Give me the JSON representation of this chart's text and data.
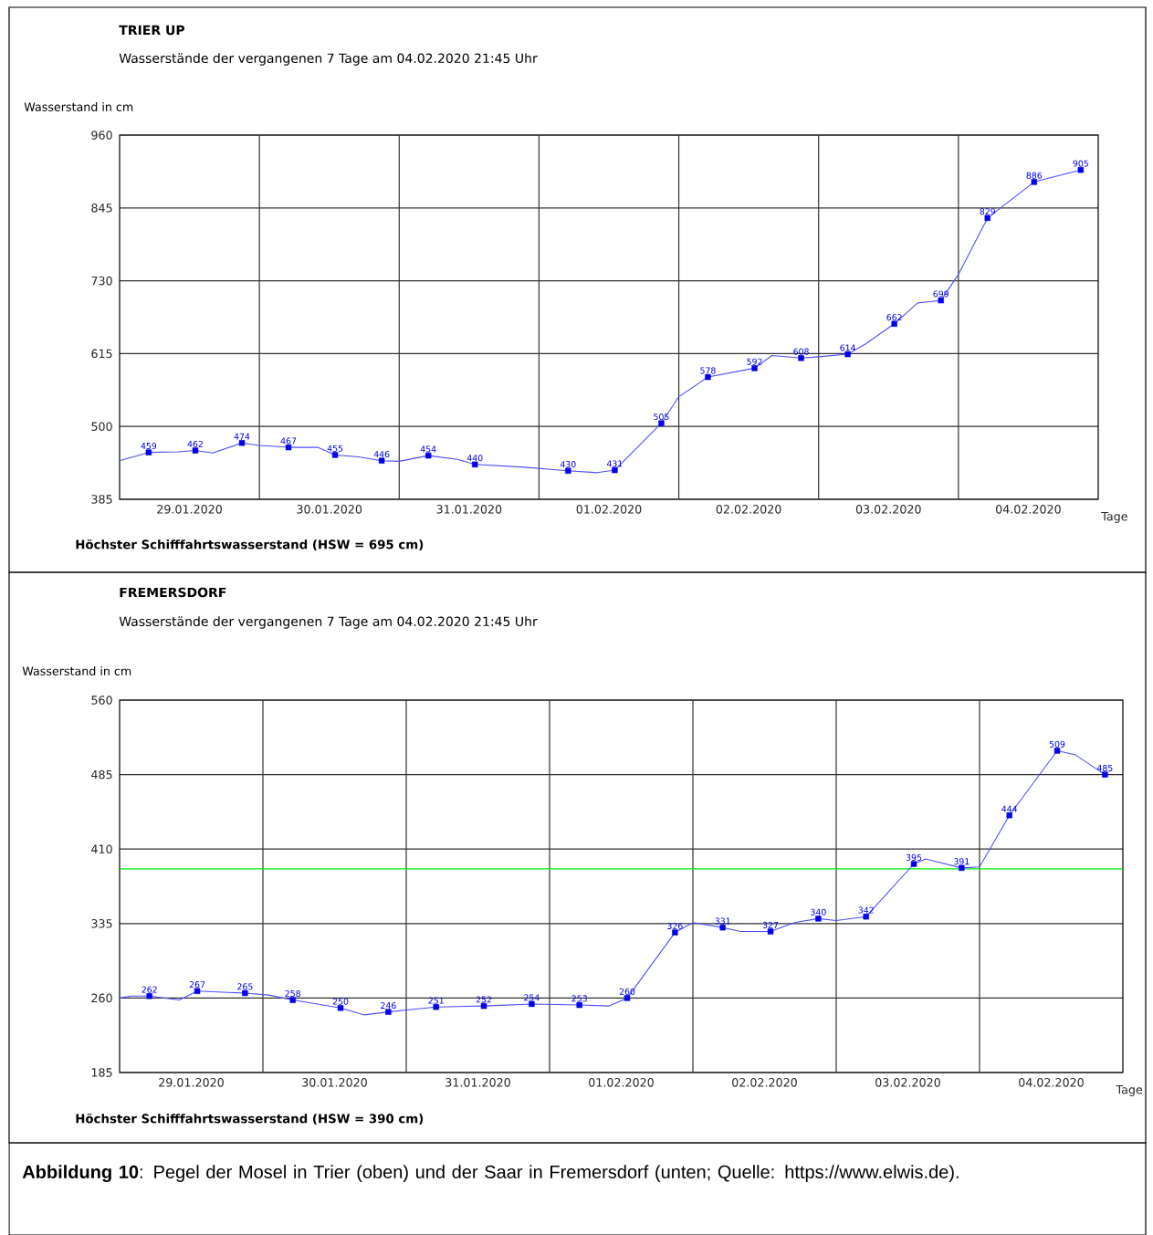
{
  "chart_data": [
    {
      "type": "line",
      "title": "TRIER UP",
      "subtitle": "Wasserstände der vergangenen 7 Tage am 04.02.2020 21:45 Uhr",
      "ylabel": "Wasserstand in cm",
      "xlabel": "Tage",
      "xlim": [
        "2020-01-29T00:00",
        "2020-02-05T00:00"
      ],
      "ylim": [
        385,
        960
      ],
      "yticks": [
        385,
        500,
        615,
        730,
        845,
        960
      ],
      "xticks": [
        {
          "value": "2020-01-29T12:00",
          "label": "29.01.2020"
        },
        {
          "value": "2020-01-30T12:00",
          "label": "30.01.2020"
        },
        {
          "value": "2020-01-31T12:00",
          "label": "31.01.2020"
        },
        {
          "value": "2020-02-01T12:00",
          "label": "01.02.2020"
        },
        {
          "value": "2020-02-02T12:00",
          "label": "02.02.2020"
        },
        {
          "value": "2020-02-03T12:00",
          "label": "03.02.2020"
        },
        {
          "value": "2020-02-04T12:00",
          "label": "04.02.2020"
        },
        {
          "value": "2020-01-30T00:00",
          "label": null
        },
        {
          "value": "2020-01-31T00:00",
          "label": null
        },
        {
          "value": "2020-02-01T00:00",
          "label": null
        },
        {
          "value": "2020-02-02T00:00",
          "label": null
        },
        {
          "value": "2020-02-03T00:00",
          "label": null
        },
        {
          "value": "2020-02-04T00:00",
          "label": null
        }
      ],
      "grid": true,
      "series": [
        {
          "type": "line",
          "color": "#4d4dff",
          "marker": "none",
          "x": [
            "2020-01-29T00:00",
            "2020-01-29T05:00",
            "2020-01-29T10:00",
            "2020-01-29T13:00",
            "2020-01-29T16:00",
            "2020-01-29T21:00",
            "2020-01-30T00:00",
            "2020-01-30T05:00",
            "2020-01-30T10:00",
            "2020-01-30T13:00",
            "2020-01-30T17:00",
            "2020-01-30T21:00",
            "2020-01-31T00:00",
            "2020-01-31T05:00",
            "2020-01-31T10:00",
            "2020-01-31T13:00",
            "2020-01-31T21:00",
            "2020-02-01T05:00",
            "2020-02-01T10:00",
            "2020-02-01T13:00",
            "2020-02-01T21:00",
            "2020-02-02T00:00",
            "2020-02-02T05:00",
            "2020-02-02T13:00",
            "2020-02-02T16:00",
            "2020-02-02T21:00",
            "2020-02-03T00:00",
            "2020-02-03T05:00",
            "2020-02-03T08:00",
            "2020-02-03T13:00",
            "2020-02-03T17:00",
            "2020-02-03T21:00",
            "2020-02-04T00:00",
            "2020-02-04T05:00",
            "2020-02-04T13:00",
            "2020-02-04T21:00"
          ],
          "values": [
            446,
            459,
            460,
            462,
            458,
            474,
            470,
            467,
            467,
            455,
            452,
            446,
            445,
            454,
            448,
            440,
            436,
            430,
            427,
            431,
            505,
            547,
            578,
            592,
            612,
            608,
            610,
            614,
            630,
            662,
            695,
            699,
            740,
            829,
            886,
            905
          ]
        },
        {
          "type": "scatter",
          "color": "#0000ee",
          "marker": "square",
          "data_labels": true,
          "x": [
            "2020-01-29T05:00",
            "2020-01-29T13:00",
            "2020-01-29T21:00",
            "2020-01-30T05:00",
            "2020-01-30T13:00",
            "2020-01-30T21:00",
            "2020-01-31T05:00",
            "2020-01-31T13:00",
            "2020-02-01T05:00",
            "2020-02-01T13:00",
            "2020-02-01T21:00",
            "2020-02-02T05:00",
            "2020-02-02T13:00",
            "2020-02-02T21:00",
            "2020-02-03T05:00",
            "2020-02-03T13:00",
            "2020-02-03T21:00",
            "2020-02-04T05:00",
            "2020-02-04T13:00",
            "2020-02-04T21:00"
          ],
          "values": [
            459,
            462,
            474,
            467,
            455,
            446,
            454,
            440,
            430,
            431,
            505,
            578,
            592,
            608,
            614,
            662,
            699,
            829,
            886,
            905
          ]
        }
      ],
      "annotations": [
        "Höchster Schifffahrtswasserstand (HSW = 695 cm)"
      ]
    },
    {
      "type": "line",
      "title": "FREMERSDORF",
      "subtitle": "Wasserstände der vergangenen 7 Tage am 04.02.2020 21:45 Uhr",
      "ylabel": "Wasserstand in cm",
      "xlabel": "Tage",
      "xlim": [
        "2020-01-29T00:00",
        "2020-02-05T00:00"
      ],
      "ylim": [
        185,
        560
      ],
      "yticks": [
        185,
        260,
        335,
        410,
        485,
        560
      ],
      "xticks": [
        {
          "value": "2020-01-29T12:00",
          "label": "29.01.2020"
        },
        {
          "value": "2020-01-30T12:00",
          "label": "30.01.2020"
        },
        {
          "value": "2020-01-31T12:00",
          "label": "31.01.2020"
        },
        {
          "value": "2020-02-01T12:00",
          "label": "01.02.2020"
        },
        {
          "value": "2020-02-02T12:00",
          "label": "02.02.2020"
        },
        {
          "value": "2020-02-03T12:00",
          "label": "03.02.2020"
        },
        {
          "value": "2020-02-04T12:00",
          "label": "04.02.2020"
        },
        {
          "value": "2020-01-30T00:00",
          "label": null
        },
        {
          "value": "2020-01-31T00:00",
          "label": null
        },
        {
          "value": "2020-02-01T00:00",
          "label": null
        },
        {
          "value": "2020-02-02T00:00",
          "label": null
        },
        {
          "value": "2020-02-03T00:00",
          "label": null
        },
        {
          "value": "2020-02-04T00:00",
          "label": null
        }
      ],
      "grid": true,
      "ref_lines": [
        {
          "axis": "y",
          "value": 390,
          "color": "#00ee00"
        }
      ],
      "series": [
        {
          "type": "line",
          "color": "#4d4dff",
          "marker": "none",
          "x": [
            "2020-01-29T00:00",
            "2020-01-29T02:00",
            "2020-01-29T05:00",
            "2020-01-29T10:00",
            "2020-01-29T13:00",
            "2020-01-29T21:00",
            "2020-01-30T01:00",
            "2020-01-30T05:00",
            "2020-01-30T13:00",
            "2020-01-30T17:00",
            "2020-01-30T21:00",
            "2020-01-31T00:00",
            "2020-01-31T05:00",
            "2020-01-31T13:00",
            "2020-01-31T21:00",
            "2020-02-01T05:00",
            "2020-02-01T10:00",
            "2020-02-01T13:00",
            "2020-02-01T21:00",
            "2020-02-02T00:00",
            "2020-02-02T05:00",
            "2020-02-02T08:00",
            "2020-02-02T13:00",
            "2020-02-02T17:00",
            "2020-02-02T21:00",
            "2020-02-03T00:00",
            "2020-02-03T05:00",
            "2020-02-03T13:00",
            "2020-02-03T15:00",
            "2020-02-03T21:00",
            "2020-02-04T00:00",
            "2020-02-04T05:00",
            "2020-02-04T13:00",
            "2020-02-04T16:00",
            "2020-02-04T21:00"
          ],
          "values": [
            260,
            262,
            262,
            258,
            267,
            265,
            263,
            258,
            250,
            243,
            246,
            248,
            251,
            252,
            254,
            253,
            252,
            260,
            326,
            336,
            331,
            327,
            327,
            336,
            340,
            338,
            342,
            395,
            400,
            391,
            392,
            444,
            509,
            505,
            485
          ]
        },
        {
          "type": "scatter",
          "color": "#0000ee",
          "marker": "square",
          "data_labels": true,
          "x": [
            "2020-01-29T05:00",
            "2020-01-29T13:00",
            "2020-01-29T21:00",
            "2020-01-30T05:00",
            "2020-01-30T13:00",
            "2020-01-30T21:00",
            "2020-01-31T05:00",
            "2020-01-31T13:00",
            "2020-01-31T21:00",
            "2020-02-01T05:00",
            "2020-02-01T13:00",
            "2020-02-01T21:00",
            "2020-02-02T05:00",
            "2020-02-02T13:00",
            "2020-02-02T21:00",
            "2020-02-03T05:00",
            "2020-02-03T13:00",
            "2020-02-03T21:00",
            "2020-02-04T05:00",
            "2020-02-04T13:00",
            "2020-02-04T21:00"
          ],
          "values": [
            262,
            267,
            265,
            258,
            250,
            246,
            251,
            252,
            254,
            253,
            260,
            326,
            331,
            327,
            340,
            342,
            395,
            391,
            444,
            509,
            485
          ]
        }
      ],
      "annotations": [
        "Höchster Schifffahrtswasserstand (HSW = 390 cm)",
        "**Abbildung 10**: Pegel der Mosel in Trier (oben) und der Saar in Fremersdorf (unten; Quelle: https://www.elwis.de)."
      ]
    }
  ]
}
